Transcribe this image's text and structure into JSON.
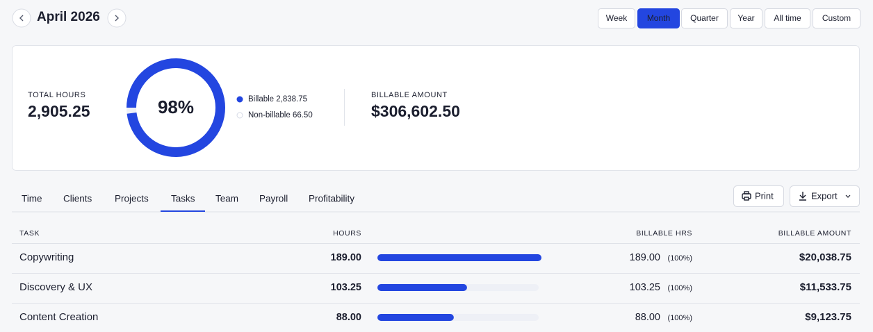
{
  "header": {
    "title": "April 2026",
    "ranges": [
      "Week",
      "Month",
      "Quarter",
      "Year",
      "All time",
      "Custom"
    ],
    "active_range": 1
  },
  "summary": {
    "total_hours_label": "TOTAL HOURS",
    "total_hours": "2,905.25",
    "billable_percent": {
      "value": 98,
      "label": "98%"
    },
    "legend": [
      {
        "name": "Billable",
        "value": "2,838.75"
      },
      {
        "name": "Non-billable",
        "value": "66.50"
      }
    ],
    "billable_amount_label": "BILLABLE AMOUNT",
    "billable_amount": "$306,602.50"
  },
  "tabs": {
    "items": [
      "Time",
      "Clients",
      "Projects",
      "Tasks",
      "Team",
      "Payroll",
      "Profitability"
    ],
    "active": 3
  },
  "actions": [
    "Print",
    "Export"
  ],
  "table": {
    "columns": [
      "TASK",
      "HOURS",
      "BILLABLE HRS",
      "BILLABLE AMOUNT"
    ],
    "rows": [
      {
        "task": "Copywriting",
        "hours": {
          "value": 189,
          "label": "189.00"
        },
        "billable_hrs": "189.00",
        "billable_pct": "(100%)",
        "billable_amount": "$20,038.75"
      },
      {
        "task": "Discovery & UX",
        "hours": {
          "value": 103.25,
          "label": "103.25"
        },
        "billable_hrs": "103.25",
        "billable_pct": "(100%)",
        "billable_amount": "$11,533.75"
      },
      {
        "task": "Content Creation",
        "hours": {
          "value": 88,
          "label": "88.00"
        },
        "billable_hrs": "88.00",
        "billable_pct": "(100%)",
        "billable_amount": "$9,123.75"
      }
    ]
  }
}
